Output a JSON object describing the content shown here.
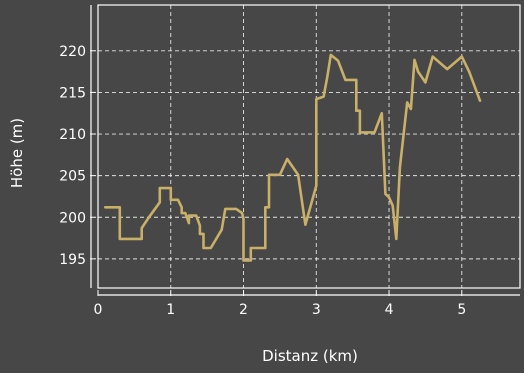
{
  "chart_data": {
    "type": "line",
    "xlabel": "Distanz (km)",
    "ylabel": "Höhe (m)",
    "xlim": [
      0,
      5.8
    ],
    "ylim": [
      191.5,
      225.5
    ],
    "xticks": [
      0,
      1,
      2,
      3,
      4,
      5
    ],
    "yticks": [
      195,
      200,
      205,
      210,
      215,
      220
    ],
    "grid": true,
    "colors": {
      "background": "#474747",
      "plot_background": "#474747",
      "line": "#c9b068",
      "axis": "#ffffff",
      "grid": "#ffffff",
      "text": "#ffffff"
    },
    "series": [
      {
        "x": [
          0.1,
          0.3,
          0.3,
          0.6,
          0.6,
          0.7,
          0.85,
          0.85,
          1.0,
          1.0,
          1.1,
          1.15,
          1.15,
          1.2,
          1.25,
          1.25,
          1.35,
          1.4,
          1.4,
          1.45,
          1.45,
          1.55,
          1.7,
          1.75,
          1.85,
          1.9,
          1.98,
          2.0,
          2.0,
          2.1,
          2.1,
          2.2,
          2.2,
          2.3,
          2.3,
          2.35,
          2.35,
          2.5,
          2.6,
          2.75,
          2.85,
          3.0,
          3.0,
          3.1,
          3.15,
          3.2,
          3.3,
          3.4,
          3.4,
          3.55,
          3.55,
          3.6,
          3.6,
          3.8,
          3.9,
          3.95,
          4.0,
          4.05,
          4.1,
          4.15,
          4.25,
          4.3,
          4.35,
          4.4,
          4.5,
          4.6,
          4.8,
          5.0,
          5.1,
          5.25
        ],
        "y": [
          201.2,
          201.2,
          197.4,
          197.4,
          198.7,
          200.0,
          201.8,
          203.5,
          203.5,
          202.1,
          202.1,
          201.2,
          200.5,
          200.5,
          199.3,
          200.2,
          200.2,
          199.0,
          198.0,
          198.0,
          196.3,
          196.3,
          198.5,
          201.0,
          201.0,
          201.0,
          200.5,
          199.8,
          194.8,
          194.8,
          196.3,
          196.3,
          196.3,
          196.3,
          201.2,
          201.2,
          205.1,
          205.1,
          207.0,
          205.1,
          199.1,
          203.8,
          214.2,
          214.5,
          216.8,
          219.5,
          218.8,
          216.5,
          216.5,
          216.5,
          212.8,
          212.8,
          210.2,
          210.2,
          212.5,
          202.8,
          202.4,
          201.4,
          197.4,
          206.0,
          213.8,
          213.0,
          218.9,
          217.5,
          216.2,
          219.3,
          217.8,
          219.3,
          217.5,
          214.0
        ]
      }
    ]
  }
}
